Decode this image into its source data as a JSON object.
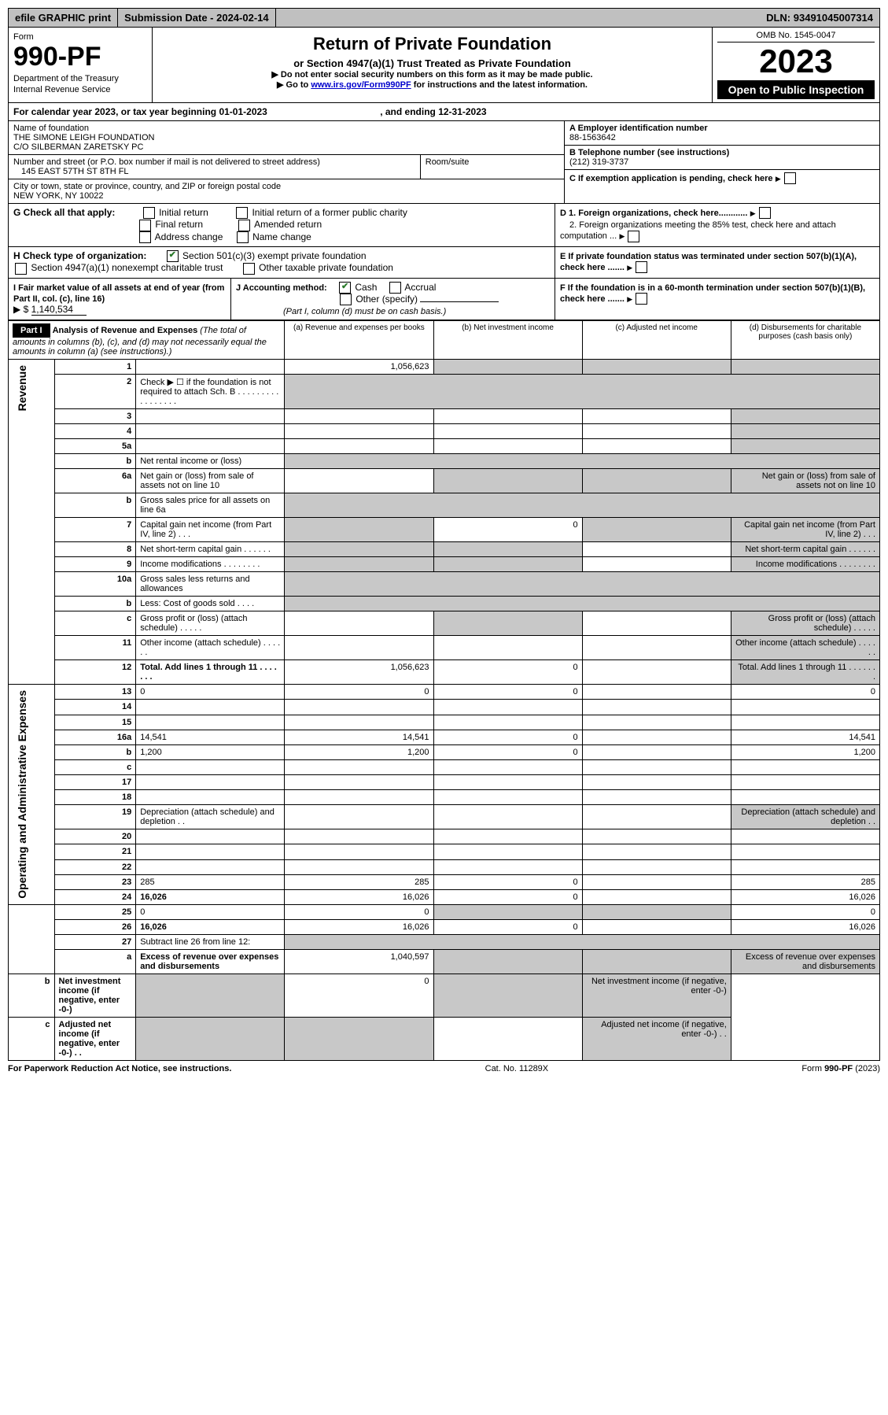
{
  "topBar": {
    "efile": "efile GRAPHIC print",
    "subDateLabel": "Submission Date - ",
    "subDate": "2024-02-14",
    "dlnLabel": "DLN: ",
    "dln": "93491045007314"
  },
  "formHeader": {
    "formWord": "Form",
    "formNumber": "990-PF",
    "dept": "Department of the Treasury",
    "irs": "Internal Revenue Service",
    "title": "Return of Private Foundation",
    "subtitle": "or Section 4947(a)(1) Trust Treated as Private Foundation",
    "warn1": "▶ Do not enter social security numbers on this form as it may be made public.",
    "warn2": "▶ Go to ",
    "warn2link": "www.irs.gov/Form990PF",
    "warn2rest": " for instructions and the latest information.",
    "omb": "OMB No. 1545-0047",
    "taxyear": "2023",
    "openPublic": "Open to Public Inspection"
  },
  "calendarYear": {
    "prefix": "For calendar year 2023, or tax year beginning ",
    "begin": "01-01-2023",
    "mid": ", and ending ",
    "end": "12-31-2023"
  },
  "entity": {
    "nameLabel": "Name of foundation",
    "name1": "THE SIMONE LEIGH FOUNDATION",
    "name2": "C/O SILBERMAN ZARETSKY PC",
    "addrLabel": "Number and street (or P.O. box number if mail is not delivered to street address)",
    "addr": "145 EAST 57TH ST 8TH FL",
    "roomLabel": "Room/suite",
    "cityLabel": "City or town, state or province, country, and ZIP or foreign postal code",
    "city": "NEW YORK, NY  10022",
    "einLabel": "A Employer identification number",
    "ein": "88-1563642",
    "phoneLabel": "B Telephone number (see instructions)",
    "phone": "(212) 319-3737",
    "cLabel": "C If exemption application is pending, check here",
    "d1": "D 1. Foreign organizations, check here............",
    "d2": "2. Foreign organizations meeting the 85% test, check here and attach computation ...",
    "eLabel": "E  If private foundation status was terminated under section 507(b)(1)(A), check here .......",
    "fLabel": "F  If the foundation is in a 60-month termination under section 507(b)(1)(B), check here .......",
    "gLabel": "G Check all that apply:",
    "g_initial": "Initial return",
    "g_initialFormer": "Initial return of a former public charity",
    "g_final": "Final return",
    "g_amended": "Amended return",
    "g_address": "Address change",
    "g_name": "Name change",
    "hLabel": "H Check type of organization:",
    "h_501c3": "Section 501(c)(3) exempt private foundation",
    "h_4947": "Section 4947(a)(1) nonexempt charitable trust",
    "h_other": "Other taxable private foundation",
    "iLabel": "I Fair market value of all assets at end of year (from Part II, col. (c), line 16)",
    "iArrow": "▶ $",
    "iValue": "1,140,534",
    "jLabel": "J Accounting method:",
    "j_cash": "Cash",
    "j_accrual": "Accrual",
    "j_other": "Other (specify)",
    "jNote": "(Part I, column (d) must be on cash basis.)"
  },
  "partI": {
    "label": "Part I",
    "title": "Analysis of Revenue and Expenses",
    "titleNote": " (The total of amounts in columns (b), (c), and (d) may not necessarily equal the amounts in column (a) (see instructions).)",
    "colA": "(a)   Revenue and expenses per books",
    "colB": "(b)   Net investment income",
    "colC": "(c)   Adjusted net income",
    "colD": "(d)   Disbursements for charitable purposes (cash basis only)"
  },
  "sideLabels": {
    "revenue": "Revenue",
    "expenses": "Operating and Administrative Expenses"
  },
  "rows": [
    {
      "n": "1",
      "d": "",
      "a": "1,056,623",
      "b": "",
      "c": "",
      "greyB": true,
      "greyC": true,
      "greyD": true
    },
    {
      "n": "2",
      "d": "Check ▶ ☐ if the foundation is not required to attach Sch. B   .   .   .   .   .   .   .   .   .   .   .   .   .   .   .   .   .",
      "a": "",
      "greyAll": true
    },
    {
      "n": "3",
      "d": "",
      "a": "",
      "b": "",
      "c": "",
      "greyD": true
    },
    {
      "n": "4",
      "d": "",
      "a": "",
      "b": "",
      "c": "",
      "greyD": true
    },
    {
      "n": "5a",
      "d": "",
      "a": "",
      "b": "",
      "c": "",
      "greyD": true
    },
    {
      "n": "b",
      "d": "Net rental income or (loss)",
      "a": "",
      "greyAll": true,
      "inlineBox": true
    },
    {
      "n": "6a",
      "d": "Net gain or (loss) from sale of assets not on line 10",
      "a": "",
      "greyB": true,
      "greyC": true,
      "greyD": true
    },
    {
      "n": "b",
      "d": "Gross sales price for all assets on line 6a",
      "a": "",
      "greyAll": true,
      "inlineBox": true
    },
    {
      "n": "7",
      "d": "Capital gain net income (from Part IV, line 2)   .   .   .",
      "a": "",
      "b": "0",
      "greyA": true,
      "greyC": true,
      "greyD": true
    },
    {
      "n": "8",
      "d": "Net short-term capital gain   .   .   .   .   .   .",
      "a": "",
      "greyA": true,
      "greyB": true,
      "greyD": true
    },
    {
      "n": "9",
      "d": "Income modifications   .   .   .   .   .   .   .   .",
      "a": "",
      "greyA": true,
      "greyB": true,
      "greyD": true
    },
    {
      "n": "10a",
      "d": "Gross sales less returns and allowances",
      "a": "",
      "greyAll": true,
      "inlineBox": true
    },
    {
      "n": "b",
      "d": "Less: Cost of goods sold   .   .   .   .",
      "a": "",
      "greyAll": true,
      "inlineBox": true
    },
    {
      "n": "c",
      "d": "Gross profit or (loss) (attach schedule)   .   .   .   .   .",
      "a": "",
      "greyB": true,
      "greyD": true
    },
    {
      "n": "11",
      "d": "Other income (attach schedule)   .   .   .   .   .   .",
      "a": "",
      "b": "",
      "c": "",
      "greyD": true
    },
    {
      "n": "12",
      "d": "Total. Add lines 1 through 11   .   .   .   .   .   .   .",
      "bold": true,
      "a": "1,056,623",
      "b": "0",
      "c": "",
      "greyD": true
    },
    {
      "n": "13",
      "d": "0",
      "a": "0",
      "b": "0",
      "c": ""
    },
    {
      "n": "14",
      "d": "",
      "a": "",
      "b": "",
      "c": ""
    },
    {
      "n": "15",
      "d": "",
      "a": "",
      "b": "",
      "c": ""
    },
    {
      "n": "16a",
      "d": "14,541",
      "a": "14,541",
      "b": "0",
      "c": ""
    },
    {
      "n": "b",
      "d": "1,200",
      "a": "1,200",
      "b": "0",
      "c": ""
    },
    {
      "n": "c",
      "d": "",
      "a": "",
      "b": "",
      "c": ""
    },
    {
      "n": "17",
      "d": "",
      "a": "",
      "b": "",
      "c": ""
    },
    {
      "n": "18",
      "d": "",
      "a": "",
      "b": "",
      "c": ""
    },
    {
      "n": "19",
      "d": "Depreciation (attach schedule) and depletion   .   .",
      "a": "",
      "b": "",
      "c": "",
      "greyD": true
    },
    {
      "n": "20",
      "d": "",
      "a": "",
      "b": "",
      "c": ""
    },
    {
      "n": "21",
      "d": "",
      "a": "",
      "b": "",
      "c": ""
    },
    {
      "n": "22",
      "d": "",
      "a": "",
      "b": "",
      "c": ""
    },
    {
      "n": "23",
      "d": "285",
      "a": "285",
      "b": "0",
      "c": ""
    },
    {
      "n": "24",
      "d": "16,026",
      "bold": true,
      "a": "16,026",
      "b": "0",
      "c": ""
    },
    {
      "n": "25",
      "d": "0",
      "a": "0",
      "greyB": true,
      "greyC": true
    },
    {
      "n": "26",
      "d": "16,026",
      "bold": true,
      "a": "16,026",
      "b": "0",
      "c": ""
    },
    {
      "n": "27",
      "d": "Subtract line 26 from line 12:",
      "greyAll": true
    },
    {
      "n": "a",
      "d": "Excess of revenue over expenses and disbursements",
      "bold": true,
      "a": "1,040,597",
      "greyB": true,
      "greyC": true,
      "greyD": true
    },
    {
      "n": "b",
      "d": "Net investment income (if negative, enter -0-)",
      "bold": true,
      "greyA": true,
      "b": "0",
      "greyC": true,
      "greyD": true
    },
    {
      "n": "c",
      "d": "Adjusted net income (if negative, enter -0-)   .   .",
      "bold": true,
      "greyA": true,
      "greyB": true,
      "c": "",
      "greyD": true
    }
  ],
  "footer": {
    "paperwork": "For Paperwork Reduction Act Notice, see instructions.",
    "cat": "Cat. No. 11289X",
    "formRef": "Form 990-PF (2023)"
  }
}
